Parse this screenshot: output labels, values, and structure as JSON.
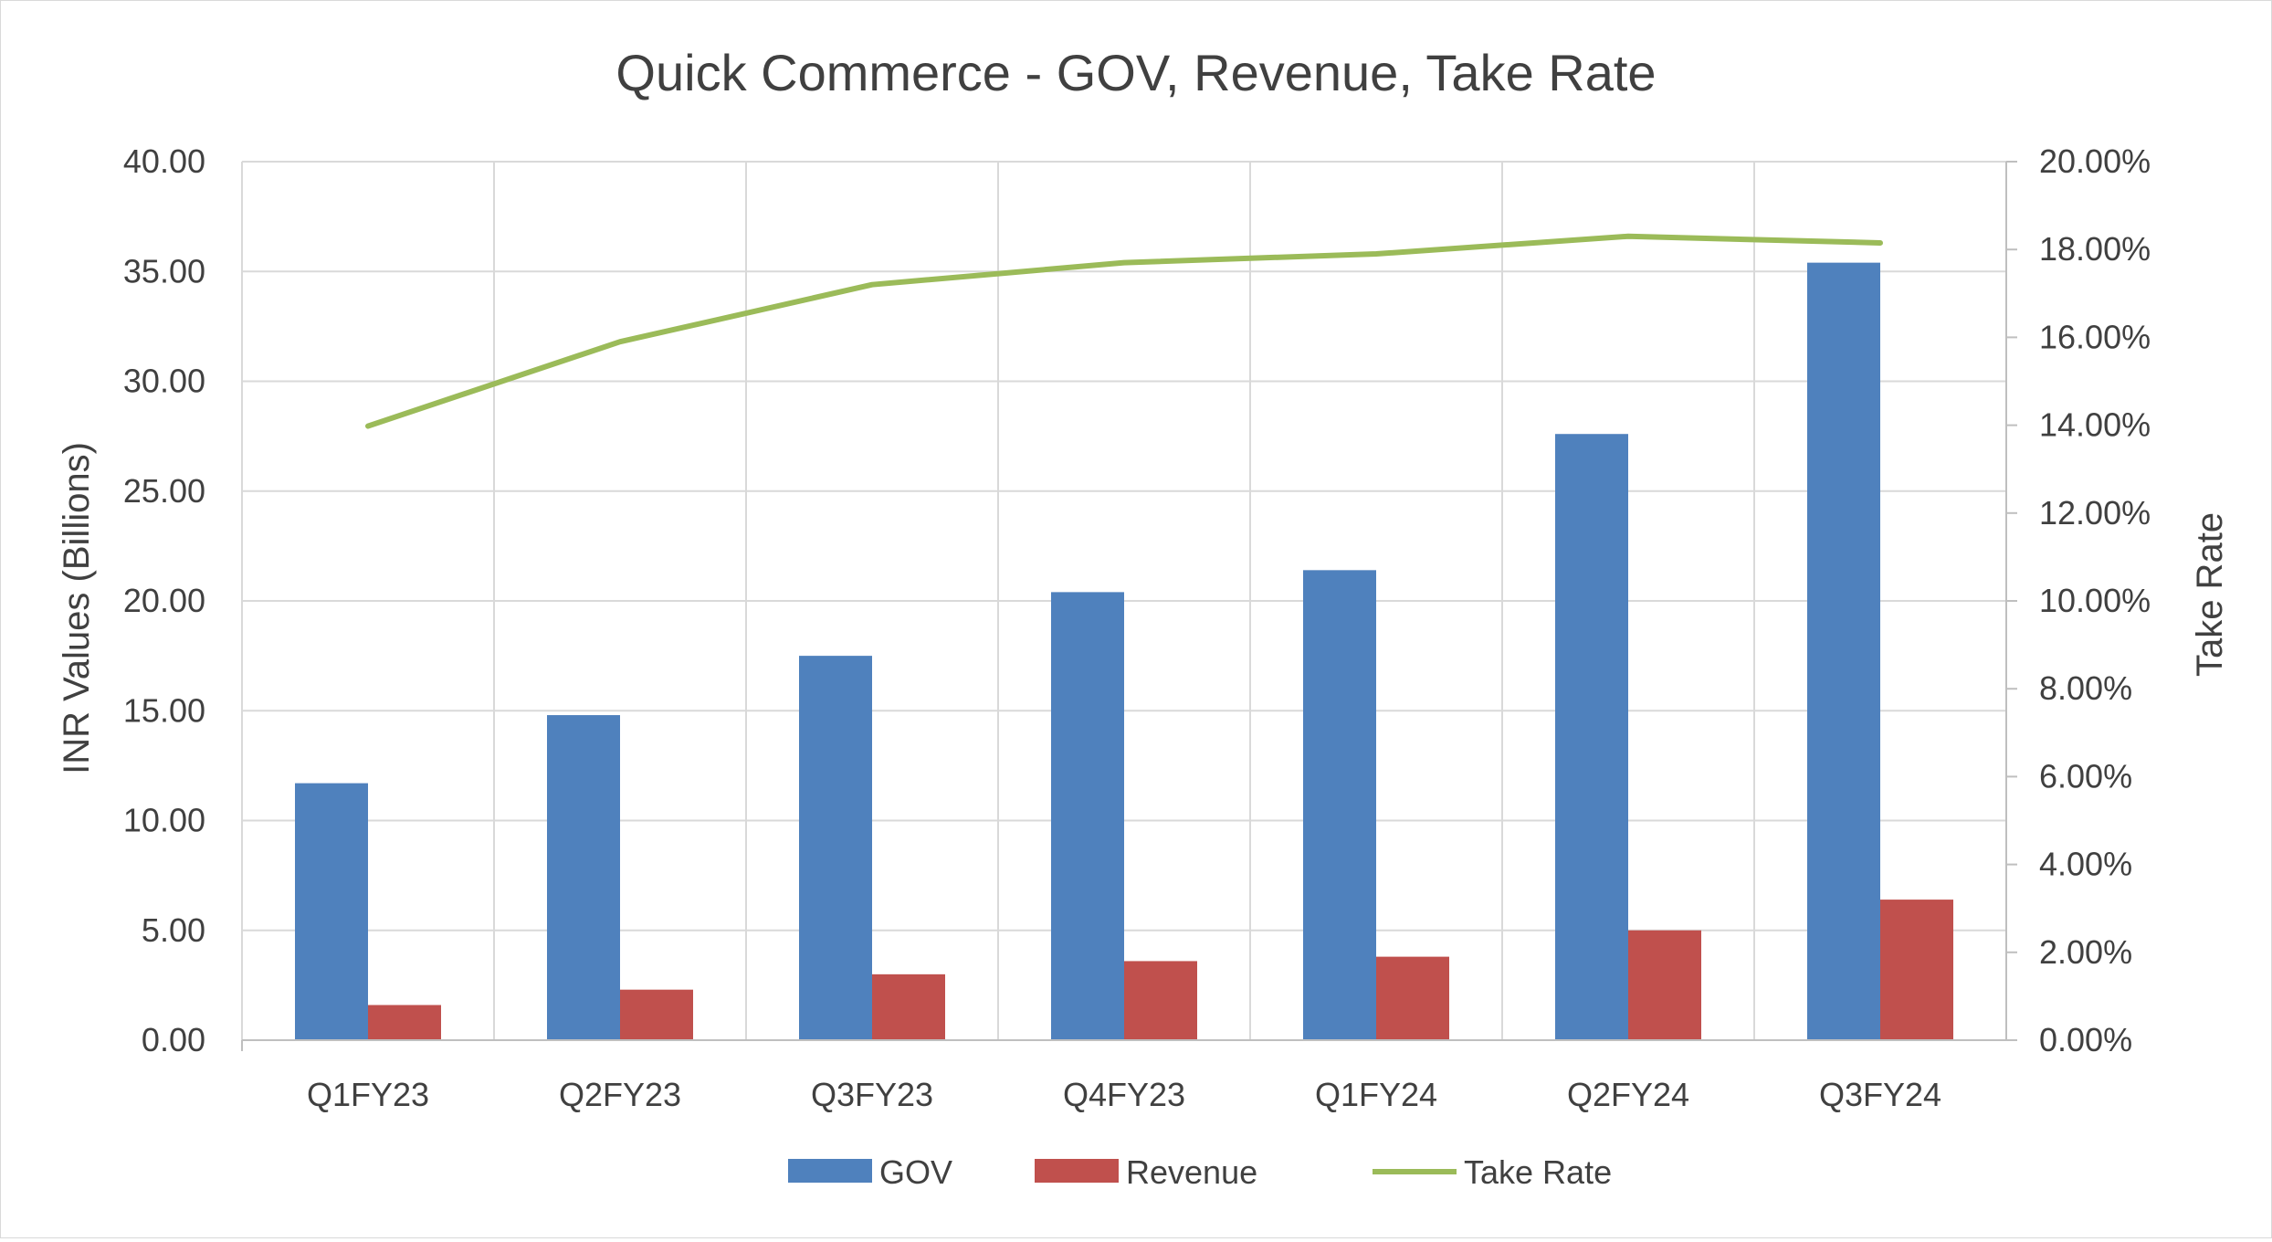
{
  "chart_data": {
    "type": "bar",
    "title": "Quick Commerce - GOV, Revenue, Take Rate",
    "categories": [
      "Q1FY23",
      "Q2FY23",
      "Q3FY23",
      "Q4FY23",
      "Q1FY24",
      "Q2FY24",
      "Q3FY24"
    ],
    "ylabel": "INR Values (Billions)",
    "y2label": "Take Rate",
    "ylim": [
      0,
      40
    ],
    "y2lim": [
      0,
      0.2
    ],
    "yticks": [
      "0.00",
      "5.00",
      "10.00",
      "15.00",
      "20.00",
      "25.00",
      "30.00",
      "35.00",
      "40.00"
    ],
    "y2ticks": [
      "0.00%",
      "2.00%",
      "4.00%",
      "6.00%",
      "8.00%",
      "10.00%",
      "12.00%",
      "14.00%",
      "16.00%",
      "18.00%",
      "20.00%"
    ],
    "grid": true,
    "legend_position": "bottom",
    "series": [
      {
        "name": "GOV",
        "type": "bar",
        "axis": "left",
        "color": "#4F81BD",
        "values": [
          11.7,
          14.8,
          17.5,
          20.4,
          21.4,
          27.6,
          35.4
        ]
      },
      {
        "name": "Revenue",
        "type": "bar",
        "axis": "left",
        "color": "#C0504D",
        "values": [
          1.6,
          2.3,
          3.0,
          3.6,
          3.8,
          5.0,
          6.4
        ]
      },
      {
        "name": "Take Rate",
        "type": "line",
        "axis": "right",
        "color": "#9BBB59",
        "values": [
          0.1398,
          0.159,
          0.172,
          0.177,
          0.179,
          0.183,
          0.1815
        ]
      }
    ]
  }
}
